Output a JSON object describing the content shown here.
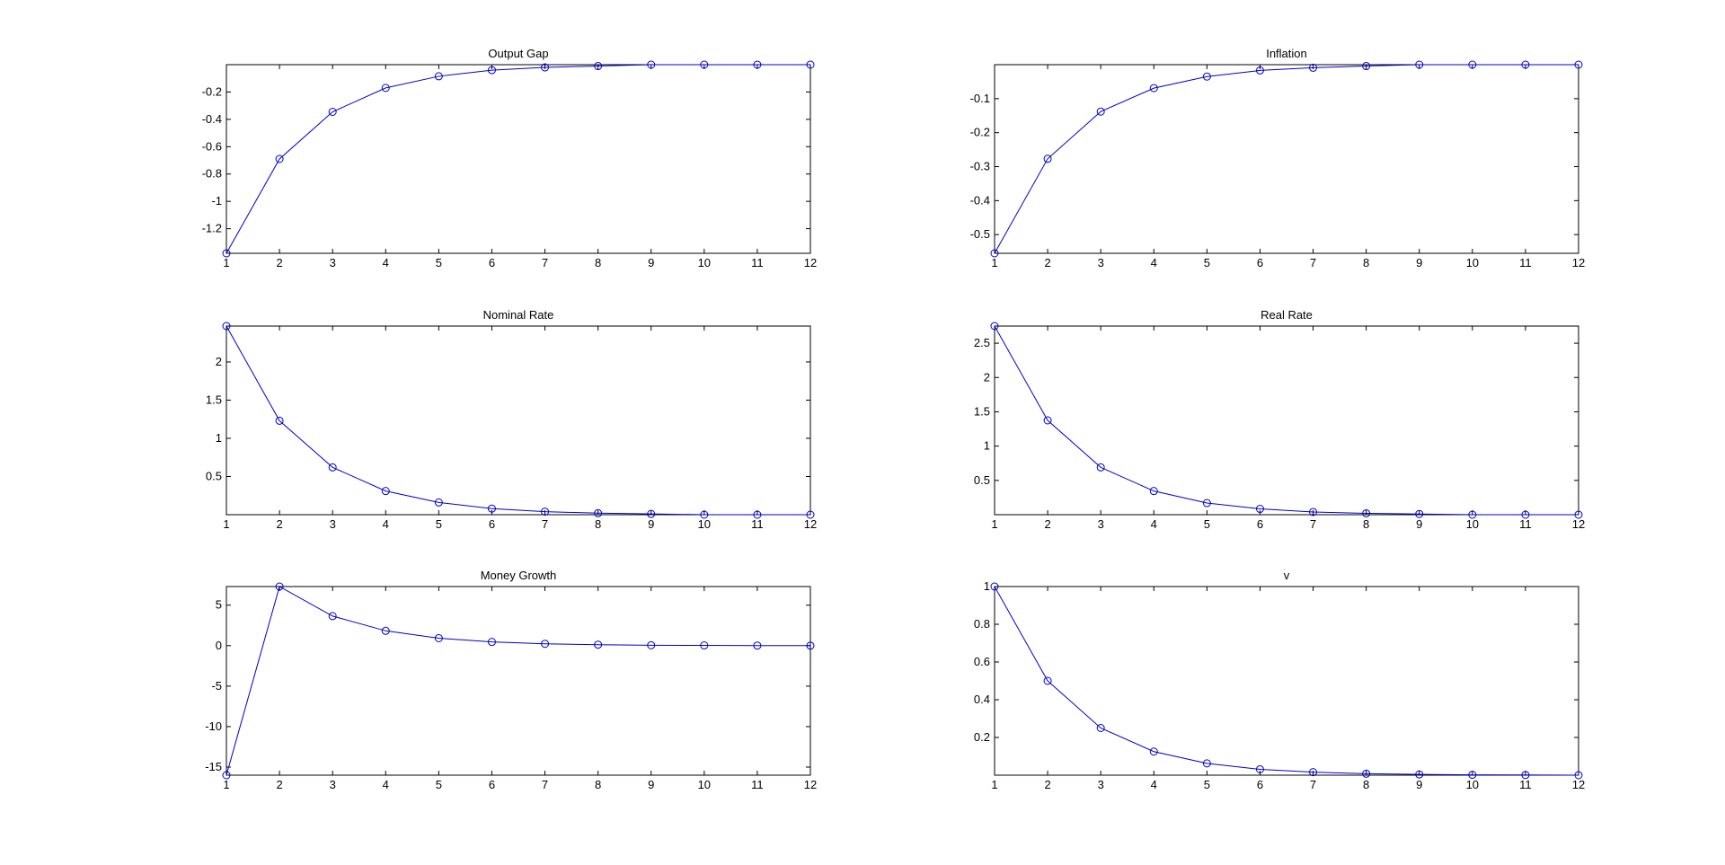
{
  "colors": {
    "line": "#0000cc",
    "axes": "#000000",
    "background": "#ffffff"
  },
  "chart_data": [
    {
      "type": "line",
      "title": "Output Gap",
      "x": [
        1,
        2,
        3,
        4,
        5,
        6,
        7,
        8,
        9,
        10,
        11,
        12
      ],
      "series": [
        {
          "values": [
            -1.38,
            -0.69,
            -0.345,
            -0.17,
            -0.085,
            -0.04,
            -0.02,
            -0.01,
            0,
            0,
            0,
            0
          ]
        }
      ],
      "xlim": [
        1,
        12
      ],
      "ylim": [
        -1.38,
        0
      ],
      "xticks": [
        "1",
        "2",
        "3",
        "4",
        "5",
        "6",
        "7",
        "8",
        "9",
        "10",
        "11",
        "12"
      ],
      "yticks": [
        {
          "v": -1.2,
          "label": "-1.2"
        },
        {
          "v": -1,
          "label": "-1"
        },
        {
          "v": -0.8,
          "label": "-0.8"
        },
        {
          "v": -0.6,
          "label": "-0.6"
        },
        {
          "v": -0.4,
          "label": "-0.4"
        },
        {
          "v": -0.2,
          "label": "-0.2"
        }
      ],
      "marker": "circle",
      "grid": false
    },
    {
      "type": "line",
      "title": "Inflation",
      "x": [
        1,
        2,
        3,
        4,
        5,
        6,
        7,
        8,
        9,
        10,
        11,
        12
      ],
      "series": [
        {
          "values": [
            -0.555,
            -0.277,
            -0.138,
            -0.069,
            -0.035,
            -0.017,
            -0.009,
            -0.004,
            0,
            0,
            0,
            0
          ]
        }
      ],
      "xlim": [
        1,
        12
      ],
      "ylim": [
        -0.555,
        0
      ],
      "xticks": [
        "1",
        "2",
        "3",
        "4",
        "5",
        "6",
        "7",
        "8",
        "9",
        "10",
        "11",
        "12"
      ],
      "yticks": [
        {
          "v": -0.5,
          "label": "-0.5"
        },
        {
          "v": -0.4,
          "label": "-0.4"
        },
        {
          "v": -0.3,
          "label": "-0.3"
        },
        {
          "v": -0.2,
          "label": "-0.2"
        },
        {
          "v": -0.1,
          "label": "-0.1"
        }
      ],
      "marker": "circle",
      "grid": false
    },
    {
      "type": "line",
      "title": "Nominal Rate",
      "x": [
        1,
        2,
        3,
        4,
        5,
        6,
        7,
        8,
        9,
        10,
        11,
        12
      ],
      "series": [
        {
          "values": [
            2.47,
            1.23,
            0.62,
            0.31,
            0.16,
            0.08,
            0.04,
            0.02,
            0.01,
            0,
            0,
            0
          ]
        }
      ],
      "xlim": [
        1,
        12
      ],
      "ylim": [
        0,
        2.47
      ],
      "xticks": [
        "1",
        "2",
        "3",
        "4",
        "5",
        "6",
        "7",
        "8",
        "9",
        "10",
        "11",
        "12"
      ],
      "yticks": [
        {
          "v": 0.5,
          "label": "0.5"
        },
        {
          "v": 1,
          "label": "1"
        },
        {
          "v": 1.5,
          "label": "1.5"
        },
        {
          "v": 2,
          "label": "2"
        }
      ],
      "marker": "circle",
      "grid": false
    },
    {
      "type": "line",
      "title": "Real Rate",
      "x": [
        1,
        2,
        3,
        4,
        5,
        6,
        7,
        8,
        9,
        10,
        11,
        12
      ],
      "series": [
        {
          "values": [
            2.75,
            1.375,
            0.69,
            0.345,
            0.17,
            0.085,
            0.04,
            0.02,
            0.01,
            0,
            0,
            0
          ]
        }
      ],
      "xlim": [
        1,
        12
      ],
      "ylim": [
        0,
        2.75
      ],
      "xticks": [
        "1",
        "2",
        "3",
        "4",
        "5",
        "6",
        "7",
        "8",
        "9",
        "10",
        "11",
        "12"
      ],
      "yticks": [
        {
          "v": 0.5,
          "label": "0.5"
        },
        {
          "v": 1,
          "label": "1"
        },
        {
          "v": 1.5,
          "label": "1.5"
        },
        {
          "v": 2,
          "label": "2"
        },
        {
          "v": 2.5,
          "label": "2.5"
        }
      ],
      "marker": "circle",
      "grid": false
    },
    {
      "type": "line",
      "title": "Money Growth",
      "x": [
        1,
        2,
        3,
        4,
        5,
        6,
        7,
        8,
        9,
        10,
        11,
        12
      ],
      "series": [
        {
          "values": [
            -16,
            7.3,
            3.65,
            1.83,
            0.92,
            0.46,
            0.23,
            0.12,
            0.05,
            0.03,
            0.01,
            0
          ]
        }
      ],
      "xlim": [
        1,
        12
      ],
      "ylim": [
        -16,
        7.3
      ],
      "xticks": [
        "1",
        "2",
        "3",
        "4",
        "5",
        "6",
        "7",
        "8",
        "9",
        "10",
        "11",
        "12"
      ],
      "yticks": [
        {
          "v": -15,
          "label": "-15"
        },
        {
          "v": -10,
          "label": "-10"
        },
        {
          "v": -5,
          "label": "-5"
        },
        {
          "v": 0,
          "label": "0"
        },
        {
          "v": 5,
          "label": "5"
        }
      ],
      "marker": "circle",
      "grid": false
    },
    {
      "type": "line",
      "title": "v",
      "x": [
        1,
        2,
        3,
        4,
        5,
        6,
        7,
        8,
        9,
        10,
        11,
        12
      ],
      "series": [
        {
          "values": [
            1,
            0.5,
            0.25,
            0.125,
            0.0625,
            0.031,
            0.016,
            0.008,
            0.004,
            0.002,
            0.001,
            0
          ]
        }
      ],
      "xlim": [
        1,
        12
      ],
      "ylim": [
        0,
        1
      ],
      "xticks": [
        "1",
        "2",
        "3",
        "4",
        "5",
        "6",
        "7",
        "8",
        "9",
        "10",
        "11",
        "12"
      ],
      "yticks": [
        {
          "v": 0.2,
          "label": "0.2"
        },
        {
          "v": 0.4,
          "label": "0.4"
        },
        {
          "v": 0.6,
          "label": "0.6"
        },
        {
          "v": 0.8,
          "label": "0.8"
        },
        {
          "v": 1,
          "label": "1"
        }
      ],
      "marker": "circle",
      "grid": false
    }
  ]
}
